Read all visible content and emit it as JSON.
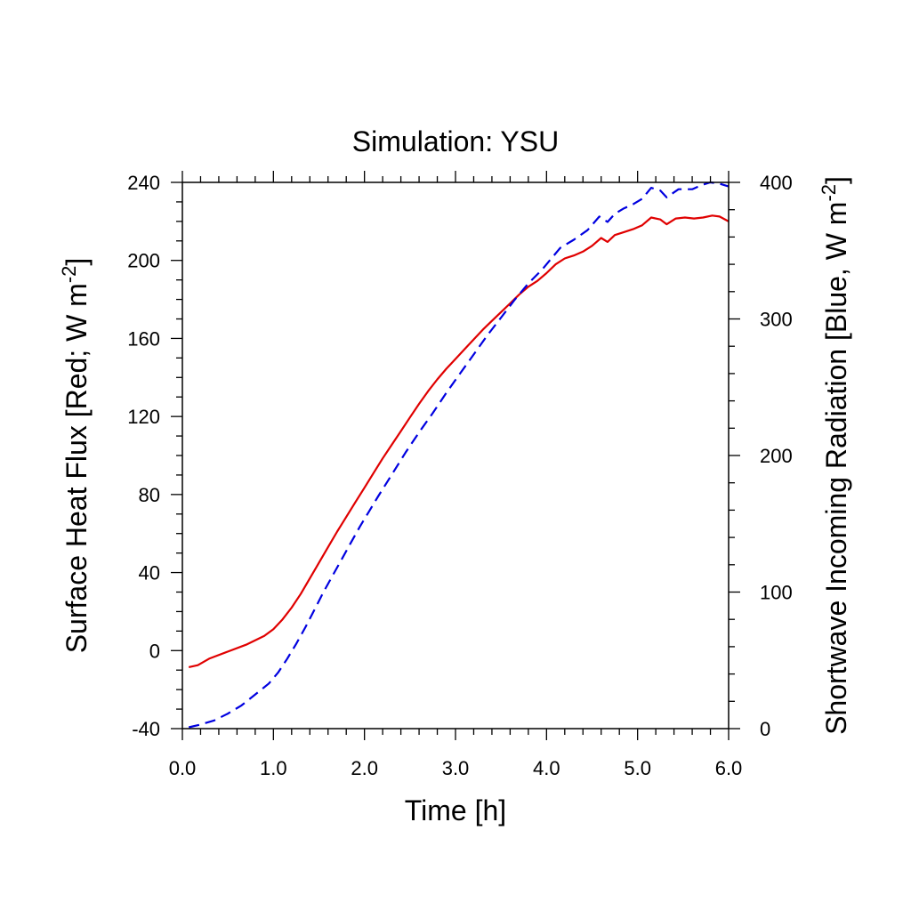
{
  "chart_data": {
    "type": "line",
    "title": "Simulation: YSU",
    "xlabel": "Time [h]",
    "ylabel_left": "Surface Heat Flux [Red; W m",
    "ylabel_left_sup": "-2",
    "ylabel_left_end": "]",
    "ylabel_right": "Shortwave Incoming Radiation [Blue, W m",
    "ylabel_right_sup": "-2",
    "ylabel_right_end": "]",
    "xlim": [
      0,
      6
    ],
    "ylim_left": [
      -40,
      240
    ],
    "ylim_right": [
      0,
      400
    ],
    "x_ticks": [
      0,
      1,
      2,
      3,
      4,
      5,
      6
    ],
    "x_tick_labels": [
      "0.0",
      "1.0",
      "2.0",
      "3.0",
      "4.0",
      "5.0",
      "6.0"
    ],
    "y_left_ticks": [
      -40,
      0,
      40,
      80,
      120,
      160,
      200,
      240
    ],
    "y_left_tick_labels": [
      "-40",
      "0",
      "40",
      "80",
      "120",
      "160",
      "200",
      "240"
    ],
    "y_right_ticks": [
      0,
      100,
      200,
      300,
      400
    ],
    "y_right_tick_labels": [
      "0",
      "100",
      "200",
      "300",
      "400"
    ],
    "grid": false,
    "series": [
      {
        "axis": "left",
        "color": "#e00000",
        "style": "solid",
        "points": [
          [
            0.07,
            -8.5
          ],
          [
            0.17,
            -7.5
          ],
          [
            0.3,
            -4
          ],
          [
            0.5,
            -0.5
          ],
          [
            0.7,
            3
          ],
          [
            0.9,
            7.5
          ],
          [
            1.0,
            11
          ],
          [
            1.1,
            16
          ],
          [
            1.2,
            22
          ],
          [
            1.3,
            29
          ],
          [
            1.4,
            37
          ],
          [
            1.5,
            45
          ],
          [
            1.6,
            53
          ],
          [
            1.7,
            61
          ],
          [
            1.8,
            68.5
          ],
          [
            1.9,
            76
          ],
          [
            2.0,
            83.5
          ],
          [
            2.1,
            91
          ],
          [
            2.2,
            98.5
          ],
          [
            2.3,
            105.5
          ],
          [
            2.4,
            112.5
          ],
          [
            2.5,
            119.5
          ],
          [
            2.6,
            126.5
          ],
          [
            2.7,
            133
          ],
          [
            2.8,
            139
          ],
          [
            2.9,
            144.5
          ],
          [
            3.0,
            149.5
          ],
          [
            3.1,
            154.5
          ],
          [
            3.2,
            159.5
          ],
          [
            3.3,
            164.5
          ],
          [
            3.4,
            169
          ],
          [
            3.5,
            173.5
          ],
          [
            3.6,
            178
          ],
          [
            3.7,
            182.5
          ],
          [
            3.8,
            186.5
          ],
          [
            3.9,
            189.5
          ],
          [
            4.0,
            193.5
          ],
          [
            4.1,
            198
          ],
          [
            4.2,
            201
          ],
          [
            4.3,
            202.5
          ],
          [
            4.4,
            204.5
          ],
          [
            4.5,
            207.5
          ],
          [
            4.6,
            211.5
          ],
          [
            4.67,
            209.5
          ],
          [
            4.75,
            213
          ],
          [
            4.85,
            214.5
          ],
          [
            4.95,
            216
          ],
          [
            5.05,
            218
          ],
          [
            5.15,
            222
          ],
          [
            5.25,
            221
          ],
          [
            5.32,
            218.5
          ],
          [
            5.42,
            221.5
          ],
          [
            5.52,
            222
          ],
          [
            5.62,
            221.5
          ],
          [
            5.72,
            222
          ],
          [
            5.82,
            223
          ],
          [
            5.9,
            222.5
          ],
          [
            6.0,
            220
          ]
        ]
      },
      {
        "axis": "right",
        "color": "#0000e0",
        "style": "dashed",
        "points": [
          [
            0.07,
            1
          ],
          [
            0.2,
            3
          ],
          [
            0.35,
            6
          ],
          [
            0.5,
            11
          ],
          [
            0.65,
            17
          ],
          [
            0.8,
            25
          ],
          [
            0.95,
            33
          ],
          [
            1.05,
            41
          ],
          [
            1.15,
            51
          ],
          [
            1.25,
            62
          ],
          [
            1.35,
            74
          ],
          [
            1.45,
            87
          ],
          [
            1.55,
            100
          ],
          [
            1.65,
            112
          ],
          [
            1.75,
            124
          ],
          [
            1.85,
            136
          ],
          [
            1.95,
            148
          ],
          [
            2.05,
            159
          ],
          [
            2.15,
            170
          ],
          [
            2.3,
            186
          ],
          [
            2.45,
            202
          ],
          [
            2.6,
            217
          ],
          [
            2.75,
            231
          ],
          [
            2.9,
            246
          ],
          [
            3.05,
            260
          ],
          [
            3.2,
            274
          ],
          [
            3.35,
            288
          ],
          [
            3.5,
            301
          ],
          [
            3.65,
            314
          ],
          [
            3.8,
            326
          ],
          [
            3.95,
            336
          ],
          [
            4.05,
            344
          ],
          [
            4.15,
            352
          ],
          [
            4.3,
            358
          ],
          [
            4.45,
            365
          ],
          [
            4.58,
            375
          ],
          [
            4.67,
            371
          ],
          [
            4.75,
            377
          ],
          [
            4.85,
            381
          ],
          [
            4.95,
            384
          ],
          [
            5.05,
            388
          ],
          [
            5.15,
            396
          ],
          [
            5.25,
            394
          ],
          [
            5.32,
            389
          ],
          [
            5.45,
            395
          ],
          [
            5.6,
            395
          ],
          [
            5.7,
            398
          ],
          [
            5.8,
            400
          ],
          [
            5.9,
            399
          ],
          [
            6.0,
            397
          ]
        ]
      }
    ]
  }
}
